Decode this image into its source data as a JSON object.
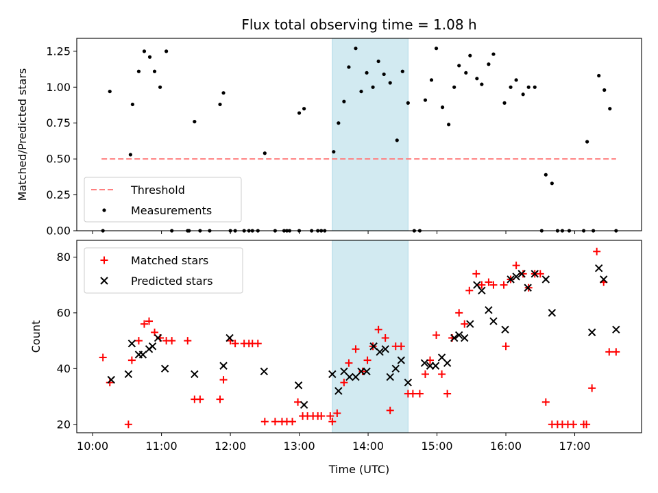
{
  "chart_data": [
    {
      "type": "scatter",
      "title": "Flux total observing time = 1.08 h",
      "ylabel": "Matched/Predicted stars",
      "xlabel": "",
      "x_unit": "hours UTC",
      "xlim": [
        9.77,
        17.97
      ],
      "ylim": [
        0.0,
        1.34
      ],
      "yticks": [
        0.0,
        0.25,
        0.5,
        0.75,
        1.0,
        1.25
      ],
      "ytick_labels": [
        "0.00",
        "0.25",
        "0.50",
        "0.75",
        "1.00",
        "1.25"
      ],
      "shaded_interval": [
        13.48,
        14.58
      ],
      "shade_color": "#add8e6",
      "threshold": {
        "name": "Threshold",
        "value": 0.5,
        "x_range": [
          10.13,
          17.6
        ],
        "color": "#ff7f7f"
      },
      "legend": {
        "position": "lower-left",
        "entries": [
          "Threshold",
          "Measurements"
        ]
      },
      "series": [
        {
          "name": "Measurements",
          "color": "#000000",
          "marker": "dot",
          "x": [
            10.15,
            10.25,
            10.55,
            10.58,
            10.67,
            10.75,
            10.83,
            10.9,
            10.98,
            11.07,
            11.15,
            11.38,
            11.4,
            11.48,
            11.56,
            11.7,
            11.85,
            11.9,
            12.0,
            12.07,
            12.2,
            12.27,
            12.32,
            12.4,
            12.5,
            12.65,
            12.78,
            12.82,
            12.86,
            13.0,
            13.0,
            13.07,
            13.18,
            13.27,
            13.32,
            13.37,
            13.5,
            13.57,
            13.65,
            13.72,
            13.82,
            13.9,
            13.98,
            14.07,
            14.15,
            14.23,
            14.32,
            14.42,
            14.5,
            14.58,
            14.67,
            14.75,
            14.83,
            14.92,
            14.99,
            15.08,
            15.17,
            15.25,
            15.32,
            15.42,
            15.48,
            15.58,
            15.65,
            15.75,
            15.82,
            15.98,
            16.07,
            16.15,
            16.25,
            16.33,
            16.42,
            16.52,
            16.58,
            16.67,
            16.75,
            16.82,
            16.92,
            17.13,
            17.18,
            17.27,
            17.35,
            17.43,
            17.51,
            17.6
          ],
          "y": [
            0.0,
            0.97,
            0.53,
            0.88,
            1.11,
            1.25,
            1.21,
            1.11,
            1.0,
            1.25,
            0.0,
            0.0,
            0.0,
            0.76,
            0.0,
            0.0,
            0.88,
            0.96,
            0.0,
            0.0,
            0.0,
            0.0,
            0.0,
            0.0,
            0.54,
            0.0,
            0.0,
            0.0,
            0.0,
            0.0,
            0.82,
            0.85,
            0.0,
            0.0,
            0.0,
            0.0,
            0.55,
            0.75,
            0.9,
            1.14,
            1.27,
            0.97,
            1.1,
            1.0,
            1.18,
            1.09,
            1.03,
            0.63,
            1.11,
            0.89,
            0.0,
            0.0,
            0.91,
            1.05,
            1.27,
            0.86,
            0.74,
            1.0,
            1.15,
            1.1,
            1.22,
            1.06,
            1.02,
            1.16,
            1.23,
            0.89,
            1.0,
            1.05,
            0.95,
            1.0,
            1.0,
            0.0,
            0.39,
            0.33,
            0.0,
            0.0,
            0.0,
            0.0,
            0.62,
            0.0,
            1.08,
            0.98,
            0.85,
            0.0
          ]
        }
      ]
    },
    {
      "type": "scatter",
      "title": "",
      "ylabel": "Count",
      "xlabel": "Time (UTC)",
      "x_unit": "hours UTC",
      "xlim": [
        9.77,
        17.97
      ],
      "ylim": [
        17,
        86
      ],
      "yticks": [
        20,
        40,
        60,
        80
      ],
      "ytick_labels": [
        "20",
        "40",
        "60",
        "80"
      ],
      "xticks": [
        10,
        11,
        12,
        13,
        14,
        15,
        16,
        17
      ],
      "xtick_labels": [
        "10:00",
        "11:00",
        "12:00",
        "13:00",
        "14:00",
        "15:00",
        "16:00",
        "17:00"
      ],
      "shaded_interval": [
        13.48,
        14.58
      ],
      "shade_color": "#add8e6",
      "legend": {
        "position": "top-left",
        "entries": [
          "Matched stars",
          "Predicted stars"
        ]
      },
      "series": [
        {
          "name": "Matched stars",
          "color": "#ff0000",
          "marker": "plus",
          "x": [
            10.15,
            10.25,
            10.52,
            10.57,
            10.67,
            10.75,
            10.82,
            10.9,
            10.98,
            11.07,
            11.15,
            11.38,
            11.48,
            11.56,
            11.85,
            11.9,
            12.0,
            12.07,
            12.2,
            12.27,
            12.32,
            12.4,
            12.5,
            12.65,
            12.75,
            12.82,
            12.9,
            12.98,
            13.05,
            13.12,
            13.2,
            13.27,
            13.32,
            13.45,
            13.48,
            13.55,
            13.65,
            13.72,
            13.82,
            13.92,
            13.99,
            14.07,
            14.15,
            14.25,
            14.32,
            14.4,
            14.48,
            14.58,
            14.65,
            14.75,
            14.83,
            14.9,
            14.99,
            15.07,
            15.15,
            15.22,
            15.32,
            15.4,
            15.47,
            15.57,
            15.65,
            15.75,
            15.82,
            15.97,
            16.0,
            16.07,
            16.15,
            16.25,
            16.33,
            16.42,
            16.5,
            16.58,
            16.67,
            16.75,
            16.82,
            16.9,
            16.98,
            17.13,
            17.17,
            17.25,
            17.32,
            17.42,
            17.5,
            17.6
          ],
          "y": [
            44,
            35,
            20,
            43,
            50,
            56,
            57,
            53,
            51,
            50,
            50,
            50,
            29,
            29,
            29,
            36,
            50,
            49,
            49,
            49,
            49,
            49,
            21,
            21,
            21,
            21,
            21,
            28,
            23,
            23,
            23,
            23,
            23,
            23,
            21,
            24,
            35,
            42,
            47,
            39,
            43,
            48,
            54,
            51,
            25,
            48,
            48,
            31,
            31,
            31,
            38,
            43,
            52,
            38,
            31,
            51,
            60,
            56,
            68,
            74,
            70,
            71,
            70,
            70,
            48,
            72,
            77,
            74,
            69,
            74,
            74,
            28,
            20,
            20,
            20,
            20,
            20,
            20,
            20,
            33,
            82,
            71,
            46,
            46
          ]
        },
        {
          "name": "Predicted stars",
          "color": "#000000",
          "marker": "x",
          "x": [
            10.27,
            10.52,
            10.57,
            10.67,
            10.73,
            10.82,
            10.87,
            10.95,
            11.05,
            11.48,
            11.9,
            11.99,
            12.49,
            12.99,
            13.07,
            13.48,
            13.57,
            13.65,
            13.73,
            13.82,
            13.9,
            13.98,
            14.08,
            14.17,
            14.25,
            14.32,
            14.4,
            14.48,
            14.58,
            14.82,
            14.9,
            14.98,
            15.07,
            15.15,
            15.25,
            15.32,
            15.4,
            15.48,
            15.58,
            15.65,
            15.75,
            15.82,
            15.99,
            16.07,
            16.15,
            16.23,
            16.32,
            16.42,
            16.58,
            16.67,
            17.25,
            17.35,
            17.42,
            17.6
          ],
          "y": [
            36,
            38,
            49,
            45,
            45,
            47,
            48,
            51,
            40,
            38,
            41,
            51,
            39,
            34,
            27,
            38,
            32,
            39,
            37,
            37,
            39,
            39,
            48,
            46,
            47,
            37,
            40,
            43,
            35,
            42,
            41,
            41,
            44,
            42,
            51,
            52,
            51,
            56,
            70,
            68,
            61,
            57,
            54,
            72,
            73,
            74,
            69,
            74,
            72,
            60,
            53,
            76,
            72,
            54
          ]
        }
      ]
    }
  ]
}
